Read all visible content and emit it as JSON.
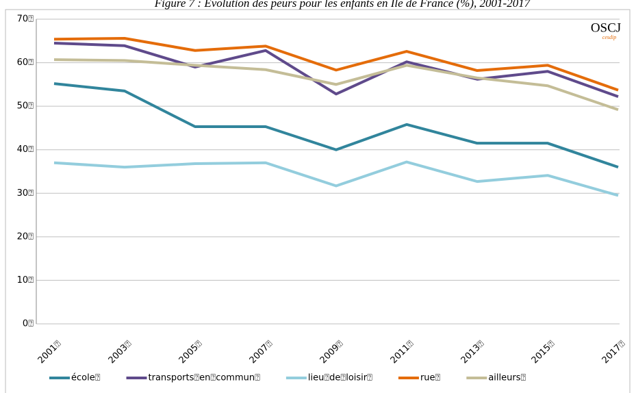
{
  "chart_data": {
    "type": "line",
    "title": "Figure 7 : Evolution des peurs pour les enfants en Ile de France (%), 2001-2017",
    "categories": [
      "2001⍰",
      "2003⍰",
      "2005⍰",
      "2007⍰",
      "2009⍰",
      "2011⍰",
      "2013⍰",
      "2015⍰",
      "2017⍰"
    ],
    "series": [
      {
        "name": "école⍰",
        "color": "#31859c",
        "values": [
          55.2,
          53.5,
          45.3,
          45.3,
          40,
          45.8,
          41.5,
          41.5,
          36
        ]
      },
      {
        "name": "transports⍰en⍰commun⍰",
        "color": "#5f4a8b",
        "values": [
          64.5,
          63.9,
          59,
          62.8,
          52.8,
          60.2,
          56.2,
          58,
          52.2
        ]
      },
      {
        "name": "lieu⍰de⍰loisir⍰",
        "color": "#93cddd",
        "values": [
          37,
          36,
          36.8,
          37,
          31.7,
          37.2,
          32.7,
          34.1,
          29.5
        ]
      },
      {
        "name": "rue⍰",
        "color": "#e46c0a",
        "values": [
          65.4,
          65.6,
          62.8,
          63.8,
          58.3,
          62.6,
          58.2,
          59.4,
          53.7
        ]
      },
      {
        "name": "ailleurs⍰",
        "color": "#c4bd97",
        "values": [
          60.7,
          60.5,
          59.4,
          58.4,
          55,
          59.4,
          56.5,
          54.7,
          49.2
        ]
      }
    ],
    "ylim": [
      0,
      70
    ],
    "yticks": [
      {
        "value": 0,
        "label": "0⍰"
      },
      {
        "value": 10,
        "label": "10⍰"
      },
      {
        "value": 20,
        "label": "20⍰"
      },
      {
        "value": 30,
        "label": "30⍰"
      },
      {
        "value": 40,
        "label": "40⍰"
      },
      {
        "value": 50,
        "label": "50⍰"
      },
      {
        "value": 60,
        "label": "60⍰"
      },
      {
        "value": 70,
        "label": "70⍰"
      }
    ],
    "grid": true,
    "legend": "bottom"
  },
  "logo": {
    "text": "OSCJ",
    "sub": "cesdip"
  }
}
